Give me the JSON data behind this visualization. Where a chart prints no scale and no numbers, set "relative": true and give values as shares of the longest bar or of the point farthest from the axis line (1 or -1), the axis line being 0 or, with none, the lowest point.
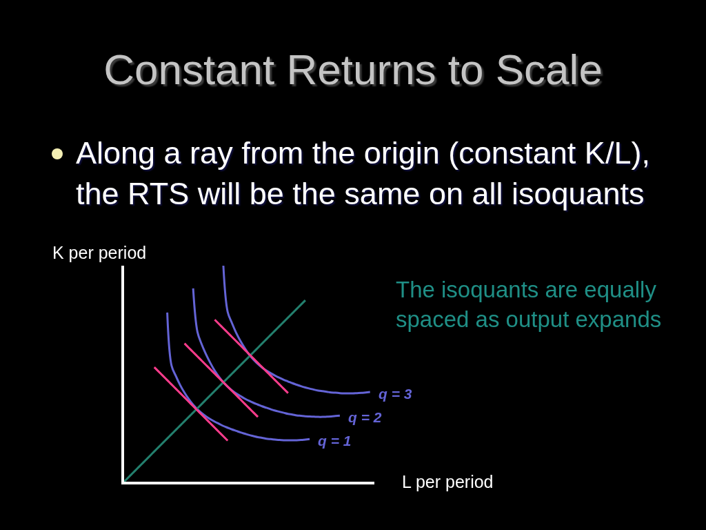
{
  "chart_data": {
    "type": "line",
    "title": "Constant Returns to Scale",
    "subtitle": "Along a ray from the origin (constant K/L), the RTS will be the same on all isoquants",
    "xlabel": "L per period",
    "ylabel": "K per period",
    "annotations": [
      "The isoquants are equally spaced as output expands"
    ],
    "relative": true,
    "categories": [
      null,
      null,
      null,
      null,
      null,
      null,
      null,
      null,
      null,
      null,
      null,
      null,
      null,
      null,
      null,
      null,
      null,
      null,
      null,
      null,
      null,
      null,
      null,
      null,
      null,
      null,
      null,
      null,
      null,
      null,
      null,
      null,
      null,
      null,
      null,
      null,
      null,
      null,
      null,
      null,
      null,
      null,
      null,
      null,
      null,
      null,
      null,
      null,
      null,
      null,
      null,
      null,
      null,
      null,
      null,
      null,
      null,
      null,
      null
    ],
    "series": [
      {
        "name": "q = 1",
        "color": "#6464d6",
        "values": [
          null,
          null,
          null,
          null,
          null,
          null,
          null,
          null,
          null,
          null,
          0.783,
          0.537,
          0.489,
          0.447,
          0.412,
          0.382,
          0.356,
          0.335,
          0.317,
          0.302,
          0.289,
          0.278,
          0.268,
          0.258,
          0.25,
          0.242,
          0.235,
          0.228,
          0.222,
          0.216,
          0.211,
          0.206,
          0.203,
          0.199,
          0.197,
          0.195,
          0.193,
          0.192,
          0.192,
          0.192,
          0.192,
          0.193,
          0.195,
          0.197,
          null,
          null,
          null,
          null,
          null,
          null,
          null,
          null,
          null,
          null,
          null,
          null,
          null,
          null,
          null
        ]
      },
      {
        "name": "q = 2",
        "color": "#6464d6",
        "values": [
          null,
          null,
          null,
          null,
          null,
          null,
          null,
          null,
          null,
          null,
          null,
          null,
          null,
          null,
          null,
          null,
          0.895,
          0.693,
          0.635,
          0.589,
          0.549,
          0.514,
          0.485,
          0.46,
          0.44,
          0.423,
          0.408,
          0.396,
          0.384,
          0.374,
          0.365,
          0.357,
          0.349,
          0.342,
          0.335,
          0.329,
          0.324,
          0.319,
          0.314,
          0.311,
          0.307,
          0.305,
          0.303,
          0.302,
          0.301,
          0.3,
          0.3,
          0.301,
          0.302,
          0.304,
          0.306,
          null,
          null,
          null,
          null,
          null,
          null,
          null,
          null
        ]
      },
      {
        "name": "q = 3",
        "color": "#6464d6",
        "values": [
          null,
          null,
          null,
          null,
          null,
          null,
          null,
          null,
          null,
          null,
          null,
          null,
          null,
          null,
          null,
          null,
          null,
          null,
          null,
          null,
          null,
          null,
          null,
          1,
          0.786,
          0.734,
          0.688,
          0.65,
          0.617,
          0.588,
          0.565,
          0.545,
          0.528,
          0.514,
          0.502,
          0.491,
          0.481,
          0.472,
          0.464,
          0.456,
          0.449,
          0.442,
          0.436,
          0.431,
          0.426,
          0.422,
          0.419,
          0.416,
          0.413,
          0.412,
          0.41,
          0.409,
          0.409,
          0.409,
          0.41,
          0.411,
          0.413,
          0.415,
          null
        ]
      },
      {
        "color": "#23806e",
        "values": [
          0,
          0.02,
          0.04,
          0.06,
          0.08,
          0.1,
          0.12,
          0.14,
          0.16,
          0.18,
          0.2,
          0.22,
          0.24,
          0.26,
          0.28,
          0.3,
          0.32,
          0.34,
          0.36,
          0.38,
          0.4,
          0.42,
          0.44,
          0.46,
          0.48,
          0.5,
          0.52,
          0.54,
          0.56,
          0.58,
          0.6,
          0.62,
          0.64,
          0.66,
          0.68,
          0.7,
          0.72,
          0.74,
          0.76,
          0.78,
          0.8,
          0.82,
          0.84,
          null,
          null,
          null,
          null,
          null,
          null,
          null,
          null,
          null,
          null,
          null,
          null,
          null,
          null,
          null,
          null
        ]
      },
      {
        "color": "#ff3c8c",
        "values": [
          null,
          null,
          null,
          null,
          null,
          null,
          null,
          0.53,
          0.51,
          0.49,
          0.47,
          0.45,
          0.43,
          0.41,
          0.39,
          0.37,
          0.35,
          0.33,
          0.31,
          0.29,
          0.27,
          0.25,
          0.23,
          0.21,
          0.19,
          null,
          null,
          null,
          null,
          null,
          null,
          null,
          null,
          null,
          null,
          null,
          null,
          null,
          null,
          null,
          null,
          null,
          null,
          null,
          null,
          null,
          null,
          null,
          null,
          null,
          null,
          null,
          null,
          null,
          null,
          null,
          null,
          null,
          null
        ]
      },
      {
        "color": "#ff3c8c",
        "values": [
          null,
          null,
          null,
          null,
          null,
          null,
          null,
          null,
          null,
          null,
          null,
          null,
          null,
          null,
          0.64,
          0.62,
          0.6,
          0.58,
          0.56,
          0.54,
          0.52,
          0.5,
          0.48,
          0.46,
          0.44,
          0.42,
          0.4,
          0.38,
          0.36,
          0.34,
          0.32,
          0.3,
          null,
          null,
          null,
          null,
          null,
          null,
          null,
          null,
          null,
          null,
          null,
          null,
          null,
          null,
          null,
          null,
          null,
          null,
          null,
          null,
          null,
          null,
          null,
          null,
          null,
          null,
          null
        ]
      },
      {
        "color": "#ff3c8c",
        "values": [
          null,
          null,
          null,
          null,
          null,
          null,
          null,
          null,
          null,
          null,
          null,
          null,
          null,
          null,
          null,
          null,
          null,
          null,
          null,
          null,
          null,
          0.75,
          0.73,
          0.71,
          0.69,
          0.67,
          0.65,
          0.63,
          0.61,
          0.59,
          0.57,
          0.55,
          0.53,
          0.51,
          0.49,
          0.47,
          0.45,
          0.43,
          0.41,
          null,
          null,
          null,
          null,
          null,
          null,
          null,
          null,
          null,
          null,
          null,
          null,
          null,
          null,
          null,
          null,
          null,
          null,
          null,
          null
        ]
      }
    ]
  }
}
